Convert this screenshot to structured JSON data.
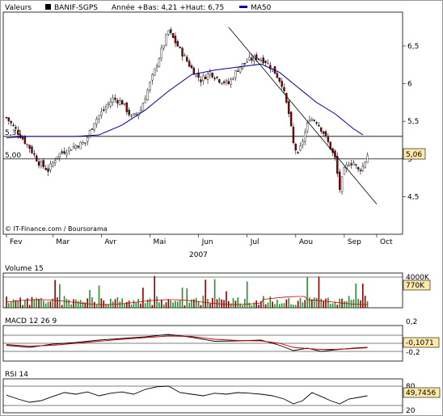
{
  "header": {
    "valeurs_label": "Valeurs",
    "ticker": "BANIF-SGPS",
    "summary": "Année +Bas: 4,21 +Haut: 6,75",
    "ma_label": "MA50"
  },
  "credit": "© IT-Finance.com / Boursorama",
  "colors": {
    "up": "#2e8b2e",
    "down": "#8b0000",
    "ma50": "#000099",
    "volume_line": "#cc0000",
    "macd_signal": "#cc0000",
    "current_box": "#ffe9a8"
  },
  "chart_data": [
    {
      "type": "candlestick",
      "title": "BANIF-SGPS",
      "x_ticks": [
        "Fev",
        "Mar",
        "Avr",
        "Mai",
        "Jun",
        "Jul",
        "Aou",
        "Sep",
        "Oct"
      ],
      "xlabel": "2007",
      "y_ticks": [
        "4,5",
        "5",
        "5,5",
        "6",
        "6,5"
      ],
      "y_tick_values": [
        4.5,
        5.0,
        5.5,
        6.0,
        6.5
      ],
      "ylim": [
        4.0,
        6.95
      ],
      "reference_lines": [
        {
          "label": "5,30",
          "value": 5.3
        },
        {
          "label": "5,00",
          "value": 5.0
        }
      ],
      "current_value": "5,06",
      "close_points": [
        [
          0,
          5.55
        ],
        [
          5,
          5.35
        ],
        [
          10,
          5.15
        ],
        [
          14,
          4.95
        ],
        [
          18,
          4.85
        ],
        [
          22,
          5.05
        ],
        [
          26,
          5.12
        ],
        [
          30,
          5.18
        ],
        [
          34,
          5.22
        ],
        [
          38,
          5.5
        ],
        [
          42,
          5.65
        ],
        [
          46,
          5.8
        ],
        [
          50,
          5.75
        ],
        [
          54,
          5.55
        ],
        [
          58,
          5.65
        ],
        [
          62,
          6.0
        ],
        [
          66,
          6.35
        ],
        [
          70,
          6.7
        ],
        [
          73,
          6.55
        ],
        [
          76,
          6.4
        ],
        [
          80,
          6.2
        ],
        [
          84,
          6.05
        ],
        [
          88,
          6.15
        ],
        [
          92,
          6.05
        ],
        [
          96,
          6.0
        ],
        [
          100,
          6.2
        ],
        [
          104,
          6.3
        ],
        [
          108,
          6.35
        ],
        [
          112,
          6.3
        ],
        [
          116,
          6.15
        ],
        [
          119,
          6.0
        ],
        [
          122,
          5.6
        ],
        [
          124,
          5.2
        ],
        [
          126,
          5.05
        ],
        [
          128,
          5.25
        ],
        [
          131,
          5.55
        ],
        [
          134,
          5.5
        ],
        [
          137,
          5.35
        ],
        [
          140,
          5.15
        ],
        [
          142,
          5.0
        ],
        [
          144,
          4.6
        ],
        [
          146,
          4.85
        ],
        [
          148,
          4.95
        ],
        [
          150,
          4.95
        ],
        [
          152,
          4.85
        ],
        [
          154,
          4.9
        ],
        [
          156,
          5.06
        ]
      ],
      "series": [
        {
          "name": "MA50",
          "points": [
            [
              0,
              5.28
            ],
            [
              10,
              5.3
            ],
            [
              20,
              5.3
            ],
            [
              30,
              5.3
            ],
            [
              40,
              5.32
            ],
            [
              50,
              5.45
            ],
            [
              60,
              5.65
            ],
            [
              70,
              5.9
            ],
            [
              80,
              6.12
            ],
            [
              90,
              6.18
            ],
            [
              100,
              6.22
            ],
            [
              110,
              6.26
            ],
            [
              118,
              6.15
            ],
            [
              126,
              5.95
            ],
            [
              134,
              5.75
            ],
            [
              142,
              5.6
            ],
            [
              150,
              5.4
            ],
            [
              154,
              5.32
            ]
          ]
        }
      ],
      "trendline": [
        [
          96,
          6.75
        ],
        [
          160,
          4.4
        ]
      ]
    },
    {
      "type": "bar",
      "title": "Volume 15",
      "y_ticks": [
        "4000K"
      ],
      "current_value": "770K"
    },
    {
      "type": "line",
      "title": "MACD 12 26 9",
      "y_ticks": [
        "0,2",
        "0",
        "-0,2"
      ],
      "ylim": [
        -0.33,
        0.33
      ],
      "current_value": "-0,1071",
      "series": [
        {
          "name": "MACD",
          "points": [
            [
              0,
              -0.05
            ],
            [
              10,
              -0.1
            ],
            [
              20,
              -0.02
            ],
            [
              30,
              0.02
            ],
            [
              40,
              0.08
            ],
            [
              50,
              0.12
            ],
            [
              60,
              0.16
            ],
            [
              70,
              0.22
            ],
            [
              80,
              0.15
            ],
            [
              90,
              0.05
            ],
            [
              100,
              0.06
            ],
            [
              110,
              0.08
            ],
            [
              118,
              -0.05
            ],
            [
              124,
              -0.18
            ],
            [
              130,
              -0.12
            ],
            [
              136,
              -0.2
            ],
            [
              142,
              -0.16
            ],
            [
              150,
              -0.12
            ],
            [
              156,
              -0.1
            ]
          ]
        },
        {
          "name": "Signal",
          "points": [
            [
              0,
              -0.03
            ],
            [
              10,
              -0.07
            ],
            [
              20,
              -0.05
            ],
            [
              30,
              0.0
            ],
            [
              40,
              0.05
            ],
            [
              50,
              0.1
            ],
            [
              60,
              0.14
            ],
            [
              70,
              0.18
            ],
            [
              80,
              0.17
            ],
            [
              90,
              0.1
            ],
            [
              100,
              0.07
            ],
            [
              110,
              0.06
            ],
            [
              118,
              0.0
            ],
            [
              124,
              -0.1
            ],
            [
              130,
              -0.13
            ],
            [
              136,
              -0.15
            ],
            [
              142,
              -0.15
            ],
            [
              150,
              -0.13
            ],
            [
              156,
              -0.11
            ]
          ]
        }
      ]
    },
    {
      "type": "line",
      "title": "RSI 14",
      "y_ticks": [
        "80",
        "20"
      ],
      "ylim": [
        10,
        90
      ],
      "current_value": "49,7456",
      "series": [
        {
          "name": "RSI 14",
          "points": [
            [
              0,
              52
            ],
            [
              5,
              40
            ],
            [
              10,
              30
            ],
            [
              15,
              35
            ],
            [
              20,
              48
            ],
            [
              25,
              60
            ],
            [
              30,
              55
            ],
            [
              35,
              62
            ],
            [
              40,
              50
            ],
            [
              45,
              58
            ],
            [
              50,
              62
            ],
            [
              55,
              55
            ],
            [
              60,
              70
            ],
            [
              65,
              78
            ],
            [
              70,
              80
            ],
            [
              75,
              60
            ],
            [
              80,
              55
            ],
            [
              85,
              50
            ],
            [
              90,
              58
            ],
            [
              95,
              55
            ],
            [
              100,
              60
            ],
            [
              105,
              58
            ],
            [
              110,
              55
            ],
            [
              115,
              50
            ],
            [
              120,
              40
            ],
            [
              124,
              25
            ],
            [
              128,
              35
            ],
            [
              132,
              60
            ],
            [
              136,
              48
            ],
            [
              140,
              35
            ],
            [
              144,
              25
            ],
            [
              148,
              40
            ],
            [
              152,
              45
            ],
            [
              156,
              50
            ]
          ]
        }
      ]
    }
  ]
}
